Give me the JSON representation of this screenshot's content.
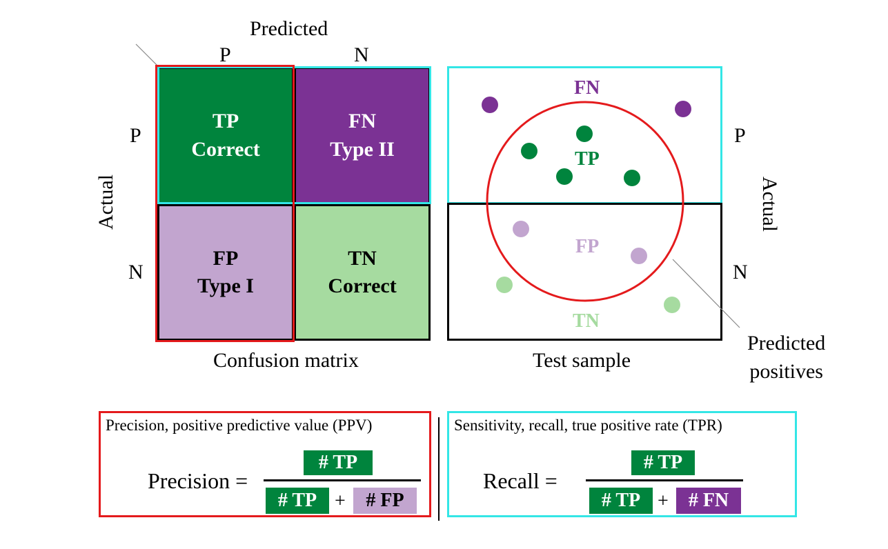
{
  "matrix": {
    "predicted_label": "Predicted",
    "actual_label": "Actual",
    "pred_p": "P",
    "pred_n": "N",
    "act_p": "P",
    "act_n": "N",
    "tp": {
      "line1": "TP",
      "line2": "Correct"
    },
    "fn": {
      "line1": "FN",
      "line2": "Type II"
    },
    "fp": {
      "line1": "FP",
      "line2": "Type I"
    },
    "tn": {
      "line1": "TN",
      "line2": "Correct"
    },
    "caption": "Confusion matrix"
  },
  "sample": {
    "fn_label": "FN",
    "tp_label": "TP",
    "fp_label": "FP",
    "tn_label": "TN",
    "act_p": "P",
    "act_n": "N",
    "actual_label": "Actual",
    "caption": "Test sample",
    "pred_pos_line1": "Predicted",
    "pred_pos_line2": "positives"
  },
  "precision": {
    "title": "Precision, positive predictive value (PPV)",
    "lhs": "Precision =",
    "numerator": "# TP",
    "den_a": "# TP",
    "plus": "+",
    "den_b": "# FP"
  },
  "recall": {
    "title": "Sensitivity, recall, true positive rate (TPR)",
    "lhs": "Recall =",
    "numerator": "# TP",
    "den_a": "# TP",
    "plus": "+",
    "den_b": "# FN"
  },
  "colors": {
    "tp": "#00843d",
    "fn": "#7b3294",
    "fp": "#c2a5cf",
    "tn": "#a6dba0",
    "precision_outline": "#e41a1c",
    "recall_outline": "#33e6e6"
  }
}
